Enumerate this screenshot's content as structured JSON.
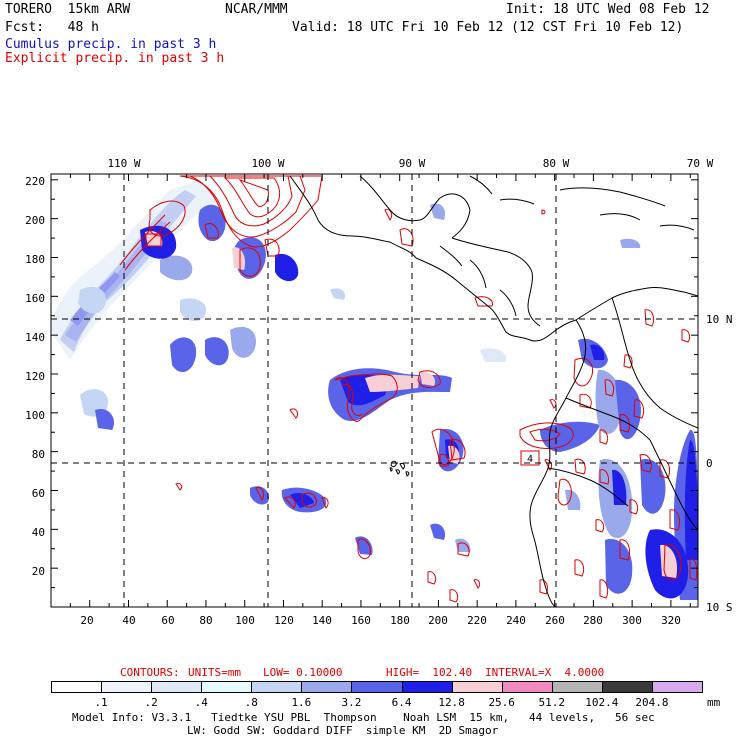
{
  "header": {
    "model": "TORERO  15km ARW",
    "org": "NCAR/MMM",
    "init": "Init: 18 UTC Wed 08 Feb 12",
    "fcst": "Fcst:   48 h",
    "valid": "Valid: 18 UTC Fri 10 Feb 12 (12 CST Fri 10 Feb 12)"
  },
  "fields": {
    "cumulus": "Cumulus precip. in past 3 h",
    "explicit": "Explicit precip. in past 3 h"
  },
  "map": {
    "top_lon_labels": [
      "110 W",
      "100 W",
      "90 W",
      "80 W",
      "70 W"
    ],
    "right_lat_labels": [
      "10 N",
      "0",
      "10 S"
    ],
    "y_ticks": [
      "220",
      "200",
      "180",
      "160",
      "140",
      "120",
      "100",
      "80",
      "60",
      "40",
      "20"
    ],
    "x_ticks": [
      "20",
      "40",
      "60",
      "80",
      "100",
      "120",
      "140",
      "160",
      "180",
      "200",
      "220",
      "240",
      "260",
      "280",
      "300",
      "320"
    ],
    "point_marker": "4"
  },
  "contours": {
    "label": "CONTOURS:",
    "units": "UNITS=mm",
    "low": "LOW= 0.10000",
    "high": "HIGH=  102.40",
    "interval": "INTERVAL=X  4.0000"
  },
  "legend": {
    "unit": "mm",
    "labels": [
      ".1",
      ".2",
      ".4",
      ".8",
      "1.6",
      "3.2",
      "6.4",
      "12.8",
      "25.6",
      "51.2",
      "102.4",
      "204.8"
    ],
    "colors": [
      "#ffffff",
      "#eef4fa",
      "#dde9f6",
      "#e6fbfb",
      "#c5d6f4",
      "#9aa8ec",
      "#5a64e8",
      "#1f1fe8",
      "#f7cfd4",
      "#f08ac0",
      "#b4b4b4",
      "#3a3a3a",
      "#d8a8f0"
    ]
  },
  "footer": {
    "line1": "Model Info: V3.3.1   Tiedtke YSU PBL  Thompson    Noah LSM  15 km,   44 levels,   56 sec",
    "line2": "LW: Godd SW: Goddard DIFF  simple KM  2D Smagor"
  }
}
